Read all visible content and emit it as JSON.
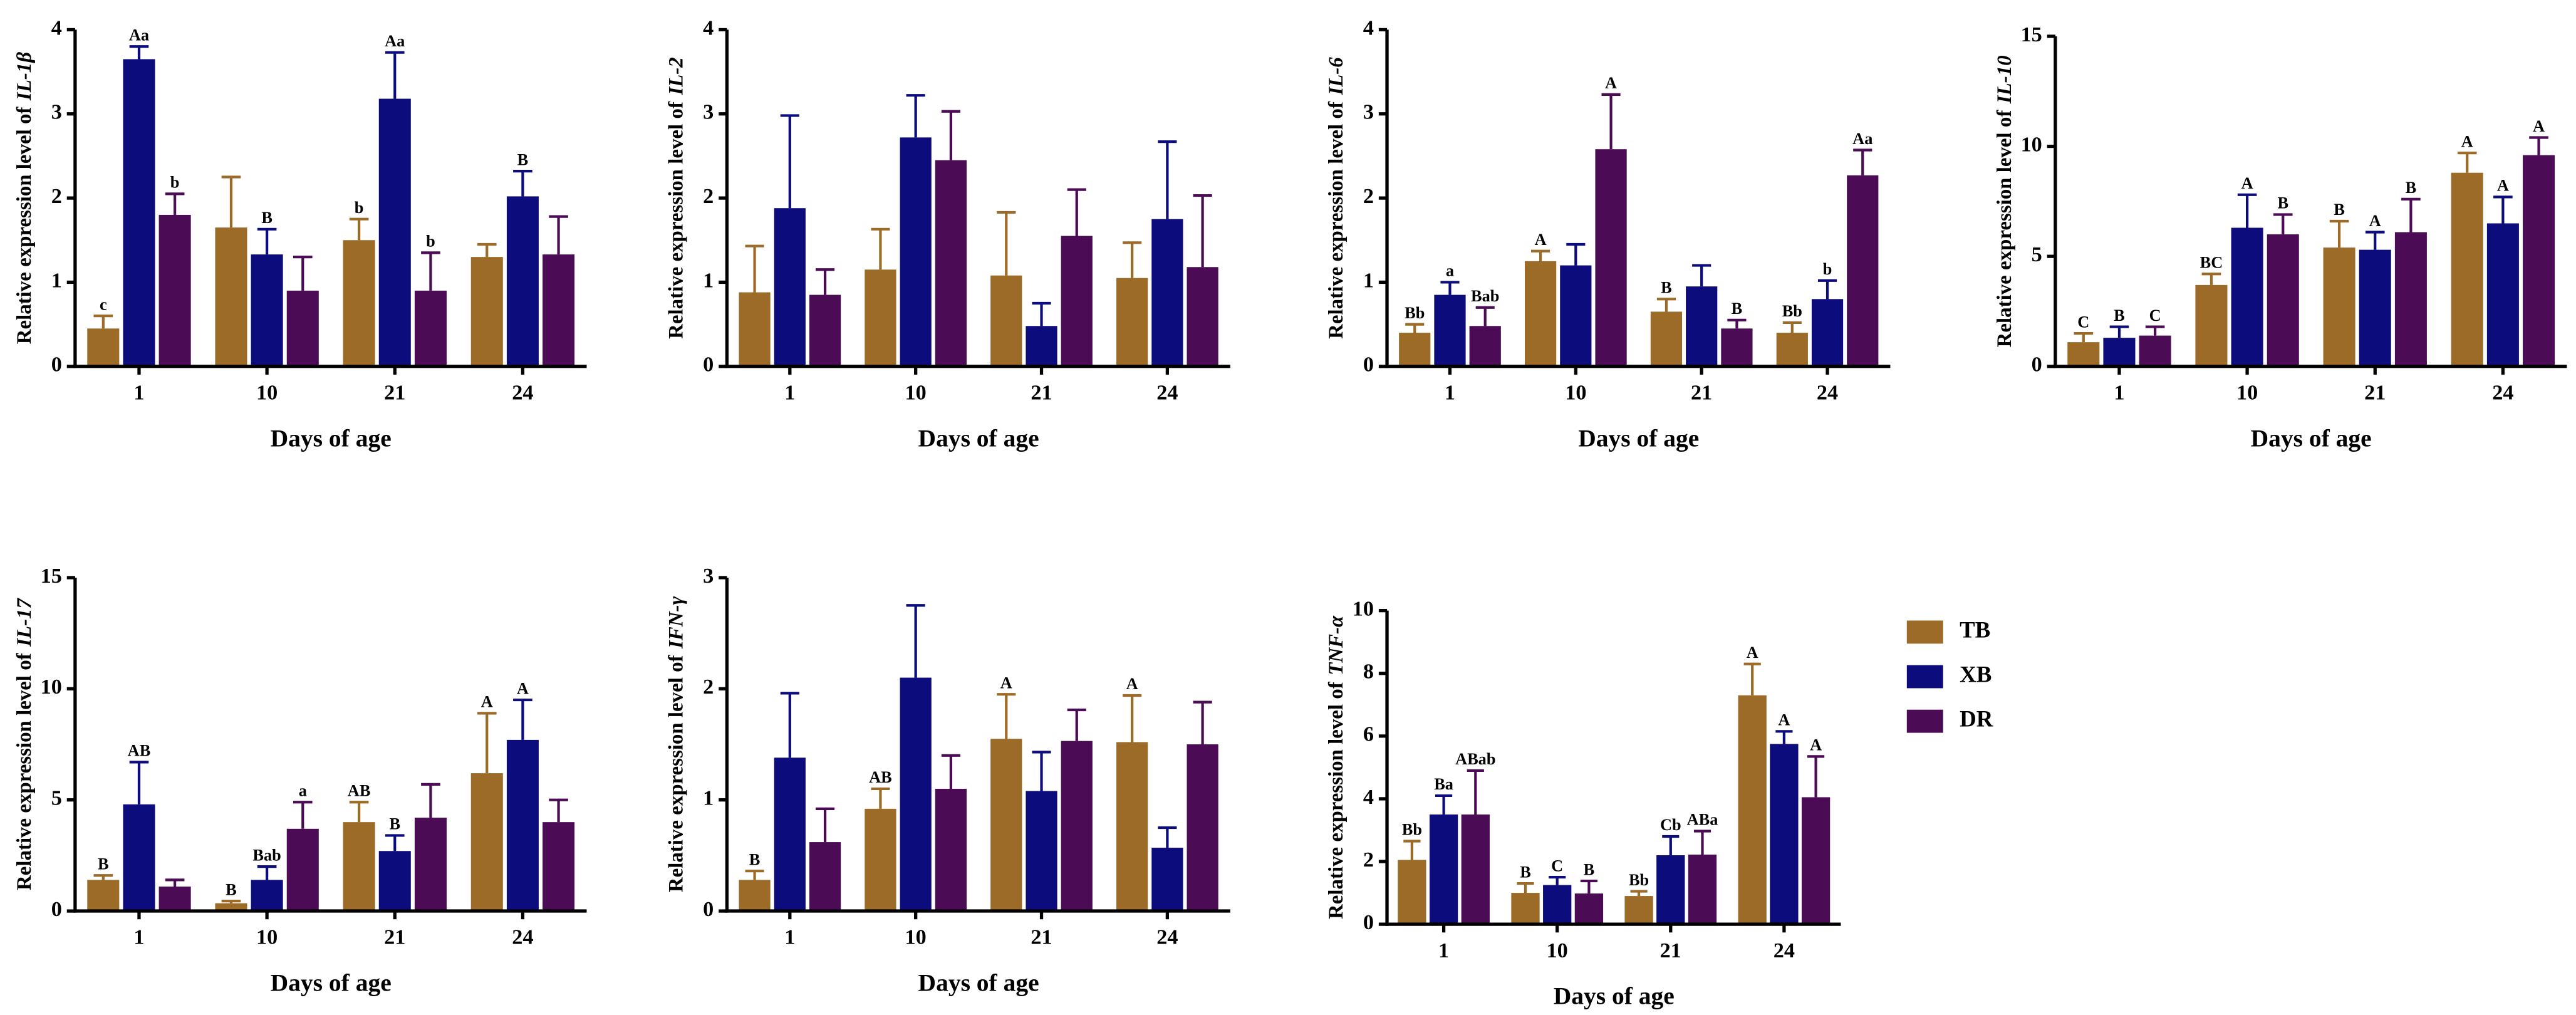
{
  "chart_data": [
    {
      "type": "bar",
      "ylabel": "Relative expression level of",
      "gene": "IL-1β",
      "xlabel": "Days of age",
      "categories": [
        "1",
        "10",
        "21",
        "24"
      ],
      "ylim": [
        0,
        4
      ],
      "yticks": [
        0,
        1,
        2,
        3,
        4
      ],
      "series": [
        {
          "color": "#9b6b27",
          "values": [
            0.45,
            1.65,
            1.5,
            1.3
          ],
          "errors": [
            0.15,
            0.6,
            0.25,
            0.15
          ],
          "labels": [
            "c",
            null,
            "b",
            null
          ]
        },
        {
          "color": "#0c0c7c",
          "values": [
            3.65,
            1.33,
            3.18,
            2.02
          ],
          "errors": [
            0.15,
            0.3,
            0.55,
            0.3
          ],
          "labels": [
            "Aa",
            "B",
            "Aa",
            "B"
          ]
        },
        {
          "color": "#4b0b55",
          "values": [
            1.8,
            0.9,
            0.9,
            1.33
          ],
          "errors": [
            0.25,
            0.4,
            0.45,
            0.45
          ],
          "labels": [
            "b",
            null,
            "b",
            null
          ]
        }
      ]
    },
    {
      "type": "bar",
      "ylabel": "Relative expression level of",
      "gene": "IL-2",
      "xlabel": "Days of age",
      "categories": [
        "1",
        "10",
        "21",
        "24"
      ],
      "ylim": [
        0,
        4
      ],
      "yticks": [
        0,
        1,
        2,
        3,
        4
      ],
      "series": [
        {
          "color": "#9b6b27",
          "values": [
            0.88,
            1.15,
            1.08,
            1.05
          ],
          "errors": [
            0.55,
            0.48,
            0.75,
            0.42
          ]
        },
        {
          "color": "#0c0c7c",
          "values": [
            1.88,
            2.72,
            0.48,
            1.75
          ],
          "errors": [
            1.1,
            0.5,
            0.27,
            0.92
          ]
        },
        {
          "color": "#4b0b55",
          "values": [
            0.85,
            2.45,
            1.55,
            1.18
          ],
          "errors": [
            0.3,
            0.58,
            0.55,
            0.85
          ]
        }
      ]
    },
    {
      "type": "bar",
      "ylabel": "Relative expression level of",
      "gene": "IL-6",
      "xlabel": "Days of age",
      "categories": [
        "1",
        "10",
        "21",
        "24"
      ],
      "ylim": [
        0,
        4
      ],
      "yticks": [
        0,
        1,
        2,
        3,
        4
      ],
      "series": [
        {
          "color": "#9b6b27",
          "values": [
            0.4,
            1.25,
            0.65,
            0.4
          ],
          "errors": [
            0.1,
            0.12,
            0.15,
            0.12
          ],
          "labels": [
            "Bb",
            "A",
            "B",
            "Bb"
          ]
        },
        {
          "color": "#0c0c7c",
          "values": [
            0.85,
            1.2,
            0.95,
            0.8
          ],
          "errors": [
            0.15,
            0.25,
            0.25,
            0.22
          ],
          "labels": [
            "a",
            null,
            null,
            "b"
          ]
        },
        {
          "color": "#4b0b55",
          "values": [
            0.48,
            2.58,
            0.45,
            2.27
          ],
          "errors": [
            0.22,
            0.65,
            0.1,
            0.3
          ],
          "labels": [
            "Bab",
            "A",
            "B",
            "Aa"
          ]
        }
      ]
    },
    {
      "type": "bar",
      "ylabel": "Relative expression level of",
      "gene": "IL-10",
      "xlabel": "Days of age",
      "categories": [
        "1",
        "10",
        "21",
        "24"
      ],
      "ylim": [
        0,
        15
      ],
      "yticks": [
        0,
        5,
        10,
        15
      ],
      "series": [
        {
          "color": "#9b6b27",
          "values": [
            1.1,
            3.7,
            5.4,
            8.8
          ],
          "errors": [
            0.4,
            0.5,
            1.2,
            0.9
          ],
          "labels": [
            "C",
            "BC",
            "B",
            "A"
          ]
        },
        {
          "color": "#0c0c7c",
          "values": [
            1.3,
            6.3,
            5.3,
            6.5
          ],
          "errors": [
            0.5,
            1.5,
            0.8,
            1.2
          ],
          "labels": [
            "B",
            "A",
            "A",
            "A"
          ]
        },
        {
          "color": "#4b0b55",
          "values": [
            1.4,
            6.0,
            6.1,
            9.6
          ],
          "errors": [
            0.4,
            0.9,
            1.5,
            0.8
          ],
          "labels": [
            "C",
            "B",
            "B",
            "A"
          ]
        }
      ]
    },
    {
      "type": "bar",
      "ylabel": "Relative expression level of",
      "gene": "IL-17",
      "xlabel": "Days of age",
      "categories": [
        "1",
        "10",
        "21",
        "24"
      ],
      "ylim": [
        0,
        15
      ],
      "yticks": [
        0,
        5,
        10,
        15
      ],
      "series": [
        {
          "color": "#9b6b27",
          "values": [
            1.4,
            0.35,
            4.0,
            6.2
          ],
          "errors": [
            0.2,
            0.1,
            0.9,
            2.7
          ],
          "labels": [
            "B",
            "B",
            "AB",
            "A"
          ]
        },
        {
          "color": "#0c0c7c",
          "values": [
            4.8,
            1.4,
            2.7,
            7.7
          ],
          "errors": [
            1.9,
            0.6,
            0.7,
            1.8
          ],
          "labels": [
            "AB",
            "Bab",
            "B",
            "A"
          ]
        },
        {
          "color": "#4b0b55",
          "values": [
            1.1,
            3.7,
            4.2,
            4.0
          ],
          "errors": [
            0.3,
            1.2,
            1.5,
            1.0
          ],
          "labels": [
            null,
            "a",
            null,
            null
          ]
        }
      ]
    },
    {
      "type": "bar",
      "ylabel": "Relative expression level of",
      "gene": "IFN-γ",
      "xlabel": "Days of age",
      "categories": [
        "1",
        "10",
        "21",
        "24"
      ],
      "ylim": [
        0,
        3
      ],
      "yticks": [
        0,
        1,
        2,
        3
      ],
      "series": [
        {
          "color": "#9b6b27",
          "values": [
            0.28,
            0.92,
            1.55,
            1.52
          ],
          "errors": [
            0.08,
            0.18,
            0.4,
            0.42
          ],
          "labels": [
            "B",
            "AB",
            "A",
            "A"
          ]
        },
        {
          "color": "#0c0c7c",
          "values": [
            1.38,
            2.1,
            1.08,
            0.57
          ],
          "errors": [
            0.58,
            0.65,
            0.35,
            0.18
          ]
        },
        {
          "color": "#4b0b55",
          "values": [
            0.62,
            1.1,
            1.53,
            1.5
          ],
          "errors": [
            0.3,
            0.3,
            0.28,
            0.38
          ]
        }
      ]
    },
    {
      "type": "bar",
      "ylabel": "Relative expression level of",
      "gene": "TNF-α",
      "xlabel": "Days of age",
      "categories": [
        "1",
        "10",
        "21",
        "24"
      ],
      "ylim": [
        0,
        10
      ],
      "yticks": [
        0,
        2,
        4,
        6,
        8,
        10
      ],
      "legend": "right",
      "series": [
        {
          "name": "TB",
          "color": "#9b6b27",
          "values": [
            2.05,
            1.0,
            0.9,
            7.3
          ],
          "errors": [
            0.6,
            0.3,
            0.15,
            1.0
          ],
          "labels": [
            "Bb",
            "B",
            "Bb",
            "A"
          ]
        },
        {
          "name": "XB",
          "color": "#0c0c7c",
          "values": [
            3.5,
            1.25,
            2.2,
            5.75
          ],
          "errors": [
            0.6,
            0.25,
            0.6,
            0.4
          ],
          "labels": [
            "Ba",
            "C",
            "Cb",
            "A"
          ]
        },
        {
          "name": "DR",
          "color": "#4b0b55",
          "values": [
            3.5,
            0.98,
            2.22,
            4.05
          ],
          "errors": [
            1.4,
            0.4,
            0.75,
            1.3
          ],
          "labels": [
            "ABab",
            "B",
            "ABa",
            "A"
          ]
        }
      ]
    }
  ]
}
